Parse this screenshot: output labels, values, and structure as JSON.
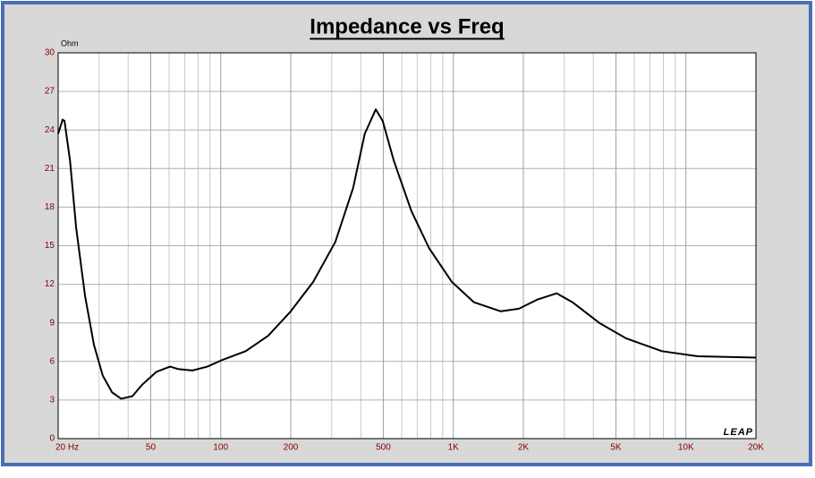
{
  "chart_data": {
    "type": "line",
    "title": "Impedance vs Freq",
    "y_label": "Ohm",
    "logo": "LEAP",
    "x_scale": "log",
    "grid": true,
    "xlim": [
      20,
      20000
    ],
    "ylim": [
      0,
      30
    ],
    "xticks": [
      {
        "value": 20,
        "label": "20 Hz"
      },
      50,
      100,
      200,
      500,
      {
        "value": 1000,
        "label": "1K"
      },
      {
        "value": 2000,
        "label": "2K"
      },
      {
        "value": 5000,
        "label": "5K"
      },
      {
        "value": 10000,
        "label": "10K"
      },
      {
        "value": 20000,
        "label": "20K"
      }
    ],
    "xminorticks": [
      30,
      40,
      60,
      70,
      80,
      90,
      300,
      400,
      600,
      700,
      800,
      900,
      3000,
      4000,
      6000,
      7000,
      8000,
      9000
    ],
    "yticks": [
      0,
      3,
      6,
      9,
      12,
      15,
      18,
      21,
      24,
      27,
      30
    ],
    "series": [
      {
        "name": "Impedance",
        "color": "#000000",
        "x": [
          20,
          20.9,
          21.3,
          22.5,
          23.9,
          26.1,
          28.5,
          31.1,
          34.1,
          37.3,
          41.7,
          46,
          53,
          60.5,
          66,
          75.5,
          87.6,
          101,
          128,
          160,
          200,
          250,
          311,
          371,
          416,
          464,
          497,
          555,
          660,
          787,
          984,
          1227,
          1600,
          1914,
          2289,
          2779,
          3255,
          4240,
          5525,
          7880,
          11230,
          20000
        ],
        "values": [
          23.7,
          24.8,
          24.7,
          21.6,
          16.4,
          11.1,
          7.3,
          4.9,
          3.6,
          3.1,
          3.3,
          4.2,
          5.2,
          5.6,
          5.4,
          5.3,
          5.6,
          6.1,
          6.8,
          8.0,
          9.9,
          12.2,
          15.3,
          19.5,
          23.7,
          25.6,
          24.7,
          21.6,
          17.7,
          14.8,
          12.2,
          10.6,
          9.9,
          10.1,
          10.8,
          11.3,
          10.6,
          9.0,
          7.8,
          6.8,
          6.4,
          6.3
        ]
      }
    ]
  }
}
